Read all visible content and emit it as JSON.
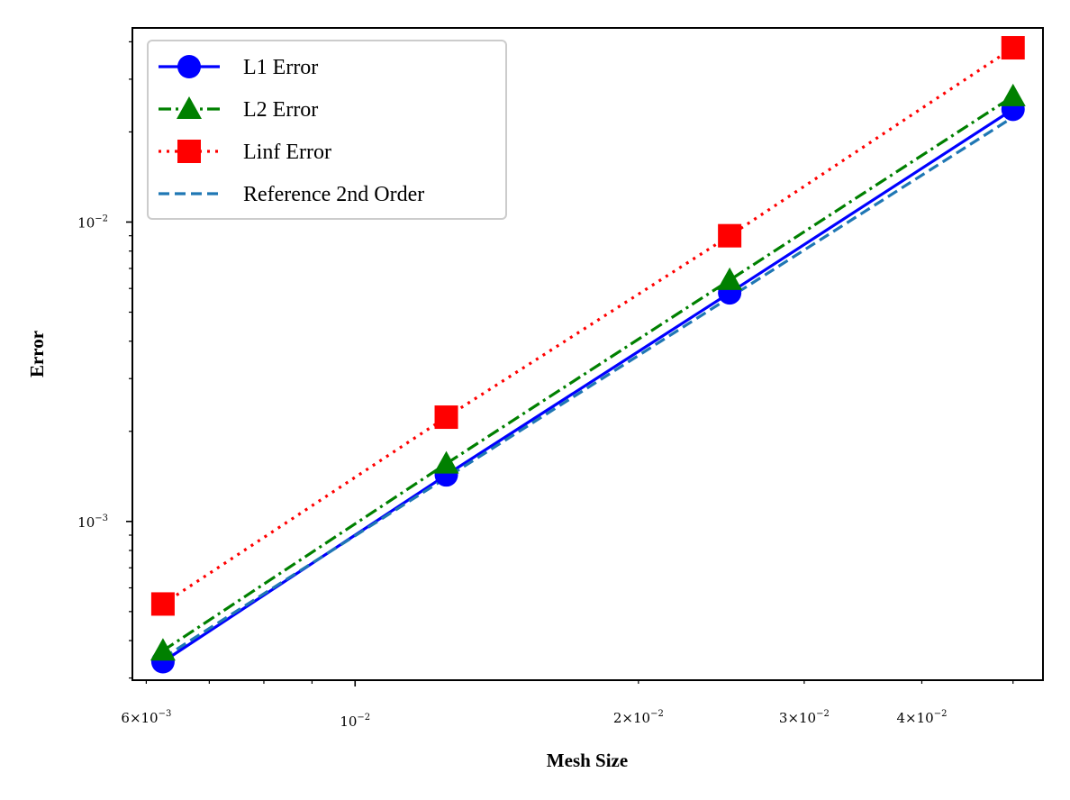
{
  "chart_data": {
    "type": "line",
    "x_scale": "log",
    "y_scale": "log",
    "xlabel": "Mesh Size",
    "ylabel": "Error",
    "xlim": [
      0.0058,
      0.0538
    ],
    "ylim": [
      0.000295,
      0.0445
    ],
    "x": [
      0.00625,
      0.0125,
      0.025,
      0.05
    ],
    "x_ticks": [
      {
        "value": 0.006,
        "base": "6×10",
        "exp": "−3"
      },
      {
        "value": 0.01,
        "base": "10",
        "exp": "−2"
      },
      {
        "value": 0.02,
        "base": "2×10",
        "exp": "−2"
      },
      {
        "value": 0.03,
        "base": "3×10",
        "exp": "−2"
      },
      {
        "value": 0.04,
        "base": "4×10",
        "exp": "−2"
      }
    ],
    "y_ticks": [
      {
        "value": 0.001,
        "base": "10",
        "exp": "−3"
      },
      {
        "value": 0.01,
        "base": "10",
        "exp": "−2"
      }
    ],
    "grid": false,
    "legend_position": "top-left",
    "series": [
      {
        "name": "L1 Error",
        "values": [
          0.00034,
          0.00143,
          0.0058,
          0.0238
        ],
        "color": "#0000ff",
        "dash": "",
        "marker": "circle"
      },
      {
        "name": "L2 Error",
        "values": [
          0.00037,
          0.00156,
          0.0064,
          0.0263
        ],
        "color": "#008000",
        "dash": "14 5 3 5",
        "marker": "triangle"
      },
      {
        "name": "Linf Error",
        "values": [
          0.00053,
          0.00223,
          0.009,
          0.0382
        ],
        "color": "#ff0000",
        "dash": "3 6",
        "marker": "square"
      },
      {
        "name": "Reference 2nd Order",
        "values": [
          0.00035,
          0.0014,
          0.0056,
          0.0224
        ],
        "color": "#1f77b4",
        "dash": "12 6",
        "marker": "none"
      }
    ]
  }
}
